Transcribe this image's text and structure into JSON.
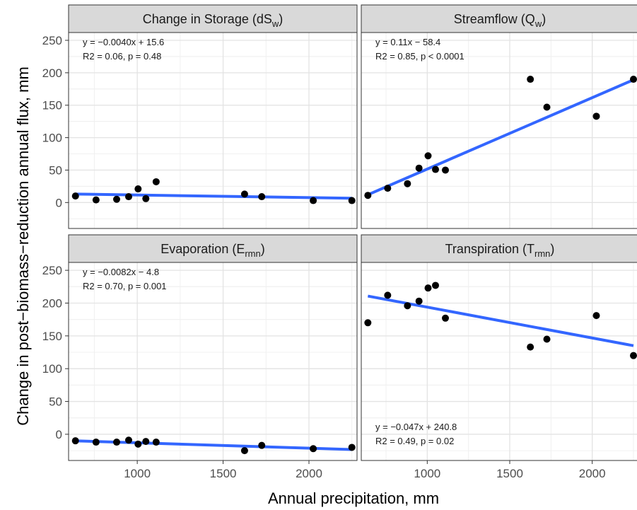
{
  "chart_data": {
    "type": "scatter",
    "layout": "2x2 facet grid",
    "xlabel": "Annual precipitation, mm",
    "ylabel": "Change in post−biomass−reduction annual flux, mm",
    "xlim": [
      600,
      2280
    ],
    "ylim": [
      -40,
      262
    ],
    "xticks": [
      1000,
      1500,
      2000
    ],
    "yticks": [
      0,
      50,
      100,
      150,
      200,
      250
    ],
    "grid": true,
    "point_color": "#000000",
    "line_color": "#3366ff",
    "strip_color": "#d9d9d9",
    "x": [
      640,
      760,
      880,
      950,
      1005,
      1050,
      1110,
      1625,
      1725,
      2025,
      2250
    ],
    "panels": [
      {
        "title": "Change in Storage (dS",
        "title_sub": "w",
        "title_end": ")",
        "y": [
          10,
          4,
          5,
          9,
          21,
          6,
          32,
          13,
          9,
          3,
          3
        ],
        "fit": {
          "slope": -0.004,
          "intercept": 15.6
        },
        "equation": "y = −0.0040x + 15.6",
        "stats": "R2 = 0.06, p = 0.48",
        "annotation_position": "top-left"
      },
      {
        "title": "Streamflow (Q",
        "title_sub": "w",
        "title_end": ")",
        "y": [
          11,
          22,
          29,
          53,
          72,
          51,
          50,
          190,
          147,
          133,
          190
        ],
        "fit": {
          "slope": 0.11,
          "intercept": -58.4
        },
        "equation": "y = 0.11x − 58.4",
        "stats": "R2 = 0.85, p < 0.0001",
        "annotation_position": "top-left"
      },
      {
        "title": "Evaporation (E",
        "title_sub": "rmn",
        "title_end": ")",
        "y": [
          -10,
          -12,
          -12,
          -9,
          -15,
          -11,
          -12,
          -25,
          -17,
          -22,
          -20
        ],
        "fit": {
          "slope": -0.0082,
          "intercept": -4.8
        },
        "equation": "y = −0.0082x − 4.8",
        "stats": "R2 = 0.70, p = 0.001",
        "annotation_position": "top-left"
      },
      {
        "title": "Transpiration (T",
        "title_sub": "rmn",
        "title_end": ")",
        "y": [
          170,
          212,
          196,
          203,
          223,
          227,
          177,
          133,
          145,
          181,
          120
        ],
        "fit": {
          "slope": -0.047,
          "intercept": 240.8
        },
        "equation": "y = −0.047x + 240.8",
        "stats": "R2 = 0.49, p = 0.02",
        "annotation_position": "bottom-left"
      }
    ]
  }
}
